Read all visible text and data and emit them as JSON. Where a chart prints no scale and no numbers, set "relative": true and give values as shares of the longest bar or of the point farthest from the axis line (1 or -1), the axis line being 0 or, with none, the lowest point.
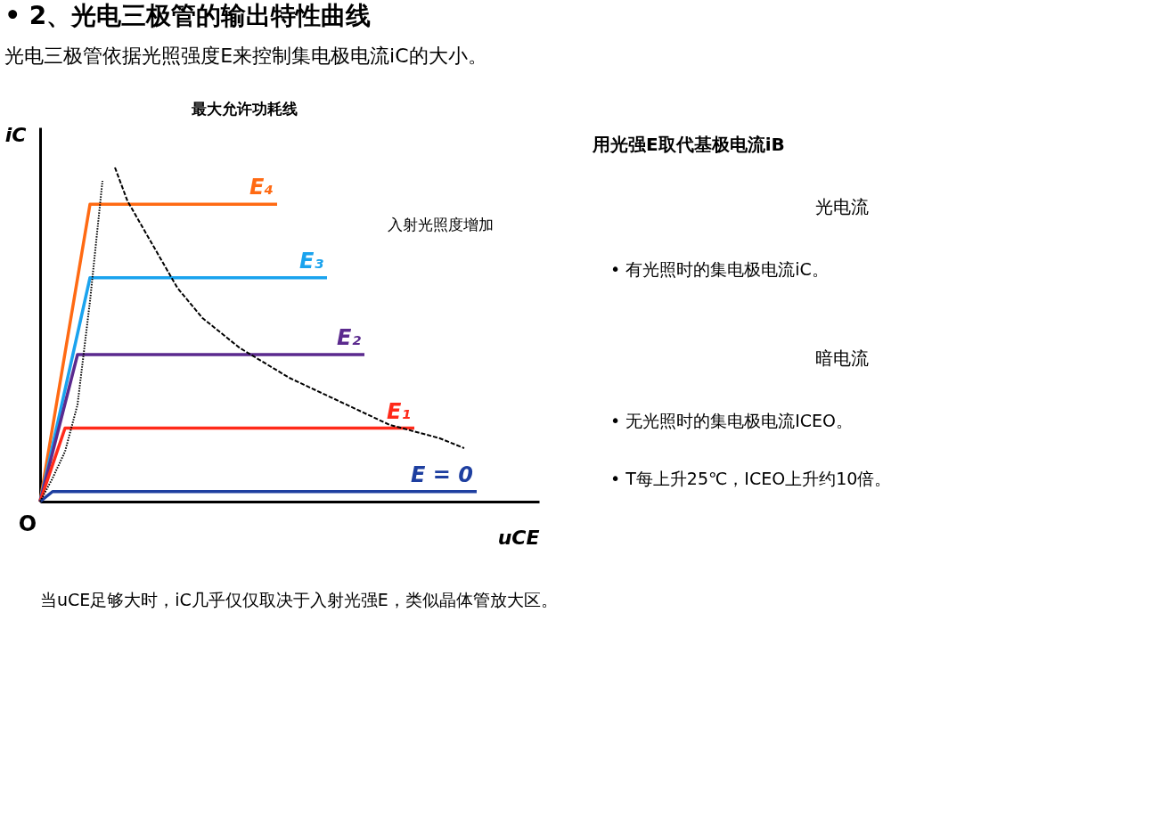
{
  "chart_data": {
    "type": "line",
    "relative": true,
    "title": "• 2、光电三极管的输出特性曲线",
    "subtitle": "光电三极管依据光照强度E来控制集电极电流iC的大小。",
    "xlabel": "uCE",
    "ylabel": "iC",
    "legend": false,
    "marker": "none",
    "grid": false,
    "categories": [
      null,
      null,
      null,
      null,
      null,
      null,
      null,
      null,
      null,
      null,
      null,
      null,
      null,
      null,
      null,
      null,
      null,
      null,
      null,
      null,
      null,
      null,
      null,
      null,
      null,
      null,
      null,
      null,
      null,
      null,
      null,
      null,
      null,
      null,
      null,
      null,
      null,
      null,
      null,
      null,
      null
    ],
    "series": [
      {
        "name": "E₄",
        "color": "#ff6a13",
        "values": [
          0,
          null,
          null,
          null,
          0.89,
          0.89,
          0.89,
          0.89,
          0.89,
          0.89,
          0.89,
          0.89,
          0.89,
          0.89,
          0.89,
          0.89,
          0.89,
          0.89,
          0.89,
          0.89,
          null,
          null,
          null,
          null,
          null,
          null,
          null,
          null,
          null,
          null,
          null,
          null,
          null,
          null,
          null,
          null,
          null,
          null,
          null,
          null,
          null
        ]
      },
      {
        "name": "E₃",
        "color": "#1aa3ee",
        "values": [
          0,
          null,
          null,
          null,
          0.67,
          0.67,
          0.67,
          0.67,
          0.67,
          0.67,
          0.67,
          0.67,
          0.67,
          0.67,
          0.67,
          0.67,
          0.67,
          0.67,
          0.67,
          0.67,
          0.67,
          0.67,
          0.67,
          0.67,
          null,
          null,
          null,
          null,
          null,
          null,
          null,
          null,
          null,
          null,
          null,
          null,
          null,
          null,
          null,
          null,
          null
        ]
      },
      {
        "name": "E₂",
        "color": "#5b2a8e",
        "values": [
          0,
          null,
          null,
          0.44,
          0.44,
          0.44,
          0.44,
          0.44,
          0.44,
          0.44,
          0.44,
          0.44,
          0.44,
          0.44,
          0.44,
          0.44,
          0.44,
          0.44,
          0.44,
          0.44,
          0.44,
          0.44,
          0.44,
          0.44,
          0.44,
          0.44,
          0.44,
          null,
          null,
          null,
          null,
          null,
          null,
          null,
          null,
          null,
          null,
          null,
          null,
          null,
          null
        ]
      },
      {
        "name": "E₁",
        "color": "#ff2a1a",
        "values": [
          0,
          null,
          0.22,
          0.22,
          0.22,
          0.22,
          0.22,
          0.22,
          0.22,
          0.22,
          0.22,
          0.22,
          0.22,
          0.22,
          0.22,
          0.22,
          0.22,
          0.22,
          0.22,
          0.22,
          0.22,
          0.22,
          0.22,
          0.22,
          0.22,
          0.22,
          0.22,
          0.22,
          0.22,
          0.22,
          0.22,
          null,
          null,
          null,
          null,
          null,
          null,
          null,
          null,
          null,
          null
        ]
      },
      {
        "name": "E = 0",
        "color": "#1e3fa0",
        "values": [
          0,
          0.03,
          0.03,
          0.03,
          0.03,
          0.03,
          0.03,
          0.03,
          0.03,
          0.03,
          0.03,
          0.03,
          0.03,
          0.03,
          0.03,
          0.03,
          0.03,
          0.03,
          0.03,
          0.03,
          0.03,
          0.03,
          0.03,
          0.03,
          0.03,
          0.03,
          0.03,
          0.03,
          0.03,
          0.03,
          0.03,
          0.03,
          0.03,
          0.03,
          0.03,
          0.03,
          null,
          null,
          null,
          null,
          null
        ]
      },
      {
        "color": "#000000",
        "line_style": "dashed",
        "values": [
          null,
          null,
          null,
          null,
          null,
          null,
          1.0,
          0.9,
          null,
          0.77,
          null,
          0.64,
          null,
          0.55,
          null,
          null,
          0.46,
          null,
          null,
          null,
          0.37,
          null,
          null,
          null,
          0.3,
          null,
          null,
          null,
          0.23,
          null,
          null,
          null,
          0.19,
          null,
          0.16,
          null,
          null,
          null,
          null,
          null,
          null
        ]
      },
      {
        "color": "#000000",
        "line_style": "dotted",
        "values": [
          0,
          0.07,
          0.15,
          0.29,
          0.6,
          0.96,
          null,
          null,
          null,
          null,
          null,
          null,
          null,
          null,
          null,
          null,
          null,
          null,
          null,
          null,
          null,
          null,
          null,
          null,
          null,
          null,
          null,
          null,
          null,
          null,
          null,
          null,
          null,
          null,
          null,
          null,
          null,
          null,
          null,
          null,
          null
        ]
      }
    ],
    "annotations": [
      "O",
      "最大允许功耗线",
      "入射光照度增加",
      "用光强E取代基极电流iB",
      "光电流",
      "• 有光照时的集电极电流iC。",
      "暗电流",
      "• 无光照时的集电极电流ICEO。",
      "• T每上升25℃，ICEO上升约10倍。",
      "当uCE足够大时，iC几乎仅仅取决于入射光强E，类似晶体管放大区。"
    ]
  }
}
